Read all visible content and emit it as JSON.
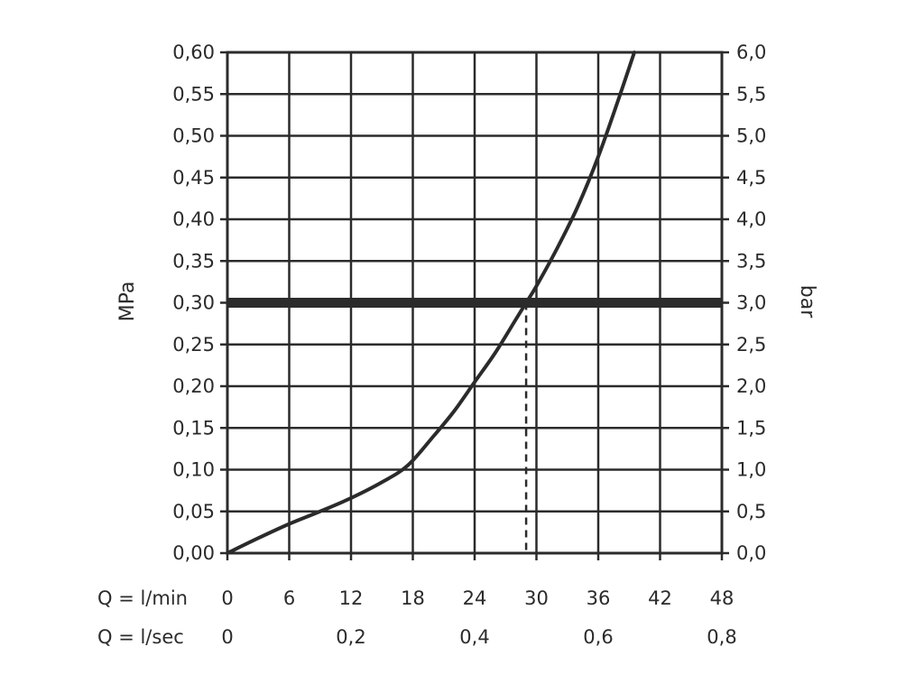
{
  "chart_data": {
    "type": "line",
    "title": "",
    "ylabel_left": "MPa",
    "ylabel_right": "bar",
    "x_primary_label": "Q = l/min",
    "x_secondary_label": "Q = l/sec",
    "xlim": [
      0,
      48
    ],
    "ylim": [
      0,
      0.6
    ],
    "grid": true,
    "x_ticks": [
      "0",
      "6",
      "12",
      "18",
      "24",
      "30",
      "36",
      "42",
      "48"
    ],
    "x_secondary_ticks": [
      {
        "value": 0,
        "label": "0"
      },
      {
        "value": 12,
        "label": "0,2"
      },
      {
        "value": 24,
        "label": "0,4"
      },
      {
        "value": 36,
        "label": "0,6"
      },
      {
        "value": 48,
        "label": "0,8"
      }
    ],
    "y_left_ticks": [
      "0,00",
      "0,05",
      "0,10",
      "0,15",
      "0,20",
      "0,25",
      "0,30",
      "0,35",
      "0,40",
      "0,45",
      "0,50",
      "0,55",
      "0,60"
    ],
    "y_right_ticks": [
      "0,0",
      "0,5",
      "1,0",
      "1,5",
      "2,0",
      "2,5",
      "3,0",
      "3,5",
      "4,0",
      "4,5",
      "5,0",
      "5,5",
      "6,0"
    ],
    "series": [
      {
        "x": [
          0,
          3,
          6,
          9,
          12,
          15,
          17.5,
          20,
          22,
          24,
          26,
          28,
          29,
          30,
          32,
          34,
          36,
          38,
          39.5
        ],
        "y": [
          0.0,
          0.018,
          0.035,
          0.05,
          0.066,
          0.085,
          0.105,
          0.14,
          0.17,
          0.205,
          0.24,
          0.28,
          0.3,
          0.32,
          0.365,
          0.415,
          0.475,
          0.545,
          0.6
        ]
      }
    ],
    "reference_line": {
      "y": 0.3,
      "unit": "MPa"
    },
    "dashed_marker": {
      "x": 29,
      "y_from": 0,
      "y_to": 0.3
    }
  }
}
